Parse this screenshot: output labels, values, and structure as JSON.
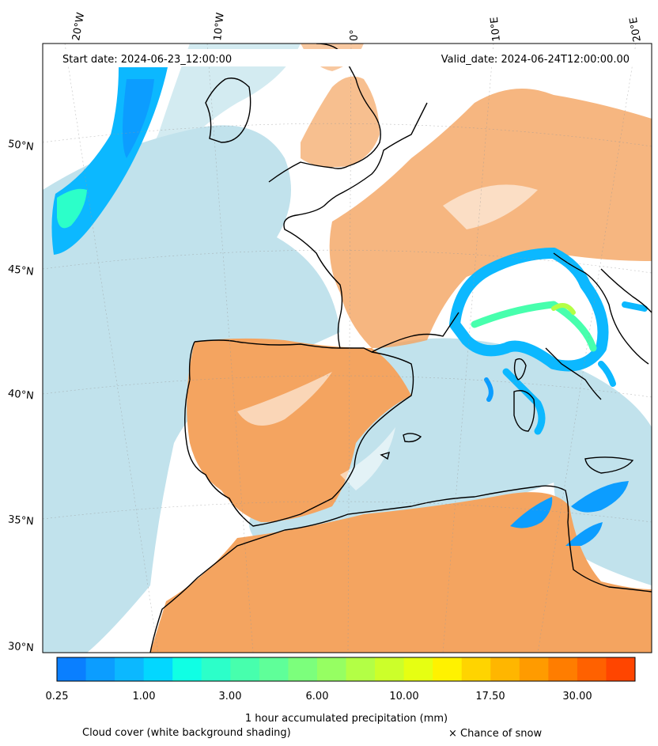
{
  "map": {
    "start_date_label": "Start date: 2024-06-23_12:00:00",
    "valid_date_label": "Valid_date: 2024-06-24T12:00:00.00",
    "longitude_labels": [
      "20°W",
      "10°W",
      "0°",
      "10°E",
      "20°E"
    ],
    "latitude_labels": [
      "50°N",
      "45°N",
      "40°N",
      "35°N",
      "30°N"
    ],
    "colors": {
      "ocean": "#ffffff",
      "cloud_cover": "#add8e6",
      "land_clear": "#f4a460",
      "coastline": "#000000"
    }
  },
  "colorbar": {
    "title": "1 hour accumulated precipitation (mm)",
    "tick_labels": [
      "0.25",
      "1.00",
      "3.00",
      "6.00",
      "10.00",
      "17.50",
      "30.00"
    ],
    "colors": [
      "#0a7fff",
      "#0c9dff",
      "#0cb8ff",
      "#03d7ff",
      "#10ffe4",
      "#2cffc9",
      "#47ffad",
      "#5fff99",
      "#7cff7c",
      "#96ff62",
      "#b3ff45",
      "#ccff2a",
      "#e6ff12",
      "#fff200",
      "#ffd400",
      "#ffb600",
      "#ff9b00",
      "#ff7d00",
      "#ff6100",
      "#ff4500"
    ]
  },
  "footer": {
    "cloud_cover_label": "Cloud cover (white background shading)",
    "snow_label": "× Chance of snow"
  }
}
